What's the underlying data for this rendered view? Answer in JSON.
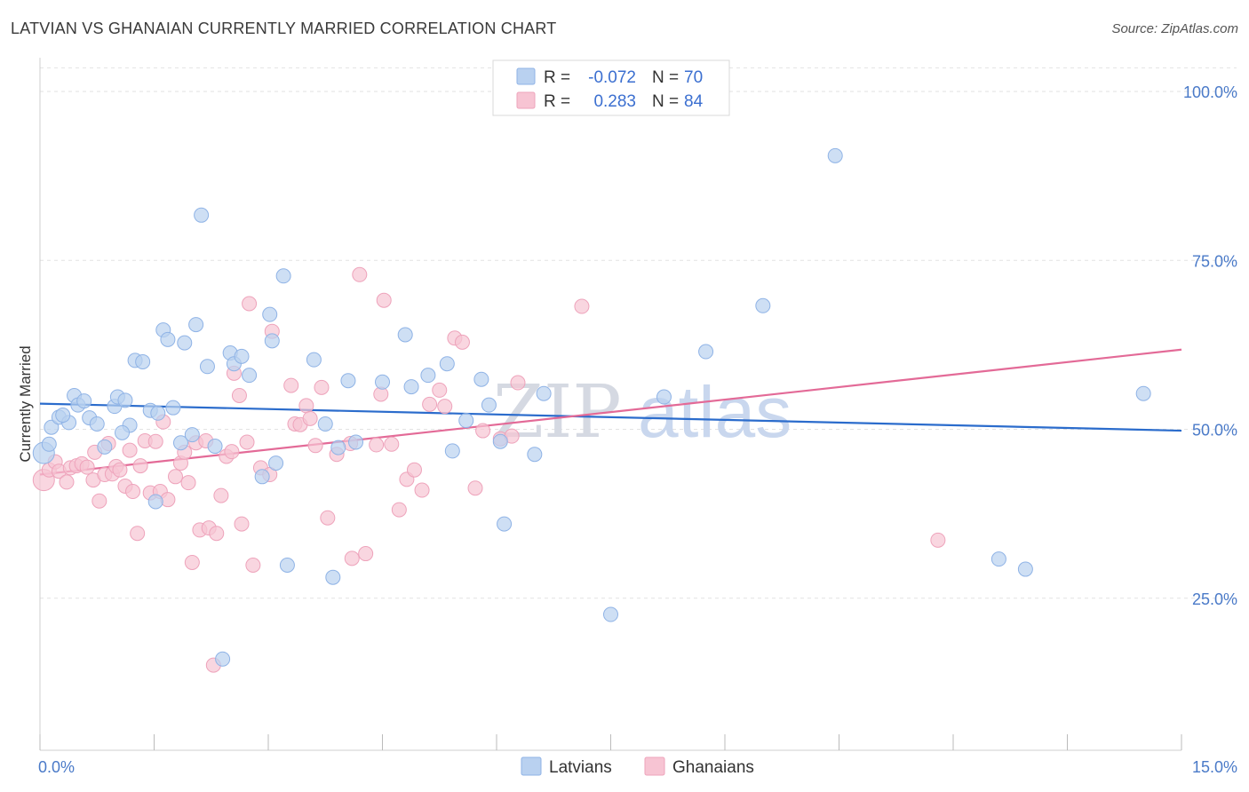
{
  "title": "LATVIAN VS GHANAIAN CURRENTLY MARRIED CORRELATION CHART",
  "source": "Source: ZipAtlas.com",
  "watermark": {
    "part1": "ZIP",
    "part2": "atlas"
  },
  "legend_top": [
    {
      "r_label": "R =",
      "r_value": "-0.072",
      "n_label": "N =",
      "n_value": "70"
    },
    {
      "r_label": "R =",
      "r_value": "0.283",
      "n_label": "N =",
      "n_value": "84"
    }
  ],
  "colors": {
    "blue_fill": "#b9d1f0",
    "blue_stroke": "#8fb3e6",
    "blue_line": "#2b6ccc",
    "pink_fill": "#f7c4d3",
    "pink_stroke": "#eea3bb",
    "pink_line": "#e36a97",
    "tick_label": "#4a7ac8",
    "grid": "#e2e2e2"
  },
  "chart_data": {
    "type": "scatter",
    "title": "LATVIAN VS GHANAIAN CURRENTLY MARRIED CORRELATION CHART",
    "xlabel": "",
    "ylabel": "Currently Married",
    "xlim": [
      0,
      15
    ],
    "ylim": [
      2.5,
      105
    ],
    "x_tick_labels": [
      "0.0%",
      "15.0%"
    ],
    "y_ticks": [
      25,
      50,
      75,
      100
    ],
    "y_tick_labels": [
      "25.0%",
      "50.0%",
      "75.0%",
      "100.0%"
    ],
    "grid": "horizontal dashed",
    "legend_position": "bottom-center",
    "series": [
      {
        "name": "Latvians",
        "r": -0.072,
        "n": 70,
        "trend": {
          "x": [
            0,
            15
          ],
          "y": [
            53.8,
            49.8
          ]
        },
        "points": [
          [
            0.05,
            46.5
          ],
          [
            0.15,
            50.3
          ],
          [
            0.25,
            51.8
          ],
          [
            0.38,
            51.0
          ],
          [
            0.45,
            55.0
          ],
          [
            0.5,
            53.6
          ],
          [
            0.58,
            54.2
          ],
          [
            0.65,
            51.7
          ],
          [
            0.75,
            50.8
          ],
          [
            0.85,
            47.4
          ],
          [
            0.98,
            53.4
          ],
          [
            1.02,
            54.8
          ],
          [
            1.12,
            54.3
          ],
          [
            1.18,
            50.6
          ],
          [
            1.25,
            60.2
          ],
          [
            1.35,
            60.0
          ],
          [
            1.45,
            52.8
          ],
          [
            1.52,
            39.3
          ],
          [
            1.55,
            52.4
          ],
          [
            1.62,
            64.7
          ],
          [
            1.68,
            63.3
          ],
          [
            1.75,
            53.2
          ],
          [
            1.85,
            48.0
          ],
          [
            1.9,
            62.8
          ],
          [
            2.0,
            49.2
          ],
          [
            2.05,
            65.5
          ],
          [
            2.12,
            81.7
          ],
          [
            2.2,
            59.3
          ],
          [
            2.3,
            47.5
          ],
          [
            2.4,
            16.0
          ],
          [
            2.5,
            61.3
          ],
          [
            2.55,
            59.7
          ],
          [
            2.65,
            60.8
          ],
          [
            2.75,
            58.0
          ],
          [
            2.92,
            43.0
          ],
          [
            3.02,
            67.0
          ],
          [
            3.05,
            63.1
          ],
          [
            3.1,
            45.0
          ],
          [
            3.2,
            72.7
          ],
          [
            3.25,
            29.9
          ],
          [
            3.6,
            60.3
          ],
          [
            3.75,
            50.8
          ],
          [
            3.85,
            28.1
          ],
          [
            3.92,
            47.3
          ],
          [
            4.05,
            57.2
          ],
          [
            4.15,
            48.1
          ],
          [
            4.5,
            57.0
          ],
          [
            4.8,
            64.0
          ],
          [
            4.88,
            56.3
          ],
          [
            5.1,
            58.0
          ],
          [
            5.35,
            59.7
          ],
          [
            5.42,
            46.8
          ],
          [
            5.6,
            51.3
          ],
          [
            5.8,
            57.4
          ],
          [
            5.9,
            53.6
          ],
          [
            6.05,
            48.2
          ],
          [
            6.1,
            36.0
          ],
          [
            6.5,
            46.3
          ],
          [
            6.62,
            55.3
          ],
          [
            7.5,
            22.6
          ],
          [
            8.2,
            54.8
          ],
          [
            8.75,
            61.5
          ],
          [
            9.5,
            68.3
          ],
          [
            10.45,
            90.5
          ],
          [
            12.6,
            30.8
          ],
          [
            12.95,
            29.3
          ],
          [
            14.5,
            55.3
          ],
          [
            0.12,
            47.8
          ],
          [
            0.3,
            52.1
          ],
          [
            1.08,
            49.5
          ]
        ]
      },
      {
        "name": "Ghanaians",
        "r": 0.283,
        "n": 84,
        "trend": {
          "x": [
            0,
            15
          ],
          "y": [
            43.3,
            61.8
          ]
        },
        "points": [
          [
            0.05,
            42.5
          ],
          [
            0.12,
            44.0
          ],
          [
            0.2,
            45.2
          ],
          [
            0.25,
            43.8
          ],
          [
            0.35,
            42.2
          ],
          [
            0.4,
            44.3
          ],
          [
            0.48,
            44.6
          ],
          [
            0.55,
            44.9
          ],
          [
            0.62,
            44.4
          ],
          [
            0.7,
            42.5
          ],
          [
            0.72,
            46.6
          ],
          [
            0.78,
            39.4
          ],
          [
            0.85,
            43.3
          ],
          [
            0.9,
            47.9
          ],
          [
            0.95,
            43.4
          ],
          [
            1.0,
            44.5
          ],
          [
            1.05,
            44.0
          ],
          [
            1.12,
            41.6
          ],
          [
            1.18,
            46.9
          ],
          [
            1.22,
            40.8
          ],
          [
            1.28,
            34.6
          ],
          [
            1.32,
            44.6
          ],
          [
            1.38,
            48.3
          ],
          [
            1.45,
            40.6
          ],
          [
            1.52,
            48.2
          ],
          [
            1.58,
            40.8
          ],
          [
            1.62,
            51.1
          ],
          [
            1.68,
            39.6
          ],
          [
            1.78,
            43.0
          ],
          [
            1.85,
            45.0
          ],
          [
            1.9,
            46.6
          ],
          [
            1.95,
            42.1
          ],
          [
            2.0,
            30.3
          ],
          [
            2.05,
            48.0
          ],
          [
            2.1,
            35.1
          ],
          [
            2.18,
            48.3
          ],
          [
            2.22,
            35.4
          ],
          [
            2.28,
            15.1
          ],
          [
            2.32,
            34.6
          ],
          [
            2.38,
            40.2
          ],
          [
            2.45,
            46.0
          ],
          [
            2.52,
            46.7
          ],
          [
            2.55,
            58.3
          ],
          [
            2.62,
            55.0
          ],
          [
            2.65,
            36.0
          ],
          [
            2.72,
            48.1
          ],
          [
            2.75,
            68.6
          ],
          [
            2.8,
            29.9
          ],
          [
            2.9,
            44.3
          ],
          [
            3.02,
            43.3
          ],
          [
            3.05,
            64.5
          ],
          [
            3.3,
            56.5
          ],
          [
            3.35,
            50.8
          ],
          [
            3.42,
            50.7
          ],
          [
            3.5,
            53.5
          ],
          [
            3.55,
            51.6
          ],
          [
            3.62,
            47.6
          ],
          [
            3.7,
            56.2
          ],
          [
            3.78,
            36.9
          ],
          [
            3.9,
            46.3
          ],
          [
            4.08,
            47.9
          ],
          [
            4.1,
            30.9
          ],
          [
            4.2,
            72.9
          ],
          [
            4.28,
            31.6
          ],
          [
            4.42,
            47.7
          ],
          [
            4.48,
            55.2
          ],
          [
            4.52,
            69.1
          ],
          [
            4.62,
            47.8
          ],
          [
            4.72,
            38.1
          ],
          [
            4.82,
            42.6
          ],
          [
            4.92,
            44.0
          ],
          [
            5.02,
            41.0
          ],
          [
            5.12,
            53.7
          ],
          [
            5.25,
            55.8
          ],
          [
            5.32,
            53.4
          ],
          [
            5.45,
            63.5
          ],
          [
            5.55,
            62.9
          ],
          [
            5.72,
            41.3
          ],
          [
            5.82,
            49.8
          ],
          [
            6.05,
            48.6
          ],
          [
            6.2,
            49.0
          ],
          [
            6.28,
            56.9
          ],
          [
            7.12,
            68.2
          ],
          [
            11.8,
            33.6
          ]
        ]
      }
    ]
  }
}
